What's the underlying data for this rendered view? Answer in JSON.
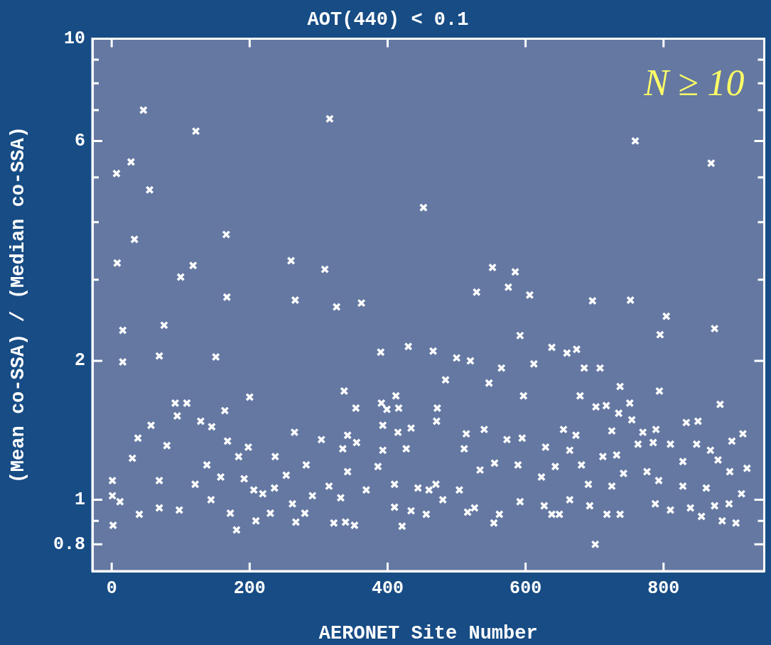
{
  "chart_data": {
    "type": "scatter",
    "title": "AOT(440) < 0.1",
    "xlabel": "AERONET Site Number",
    "ylabel": "(Mean co-SSA) / (Median co-SSA)",
    "annotations": [
      "N ≥ 10"
    ],
    "log": "y",
    "grid": false,
    "legend": false,
    "marker": "cross",
    "xlim": [
      -28,
      946
    ],
    "xticks": [
      0,
      200,
      400,
      600,
      800
    ],
    "ylim": [
      0.7,
      10
    ],
    "yticks": [
      0.8,
      {
        "value": 0.9,
        "label": null
      },
      1,
      2,
      {
        "value": 3,
        "label": null
      },
      {
        "value": 4,
        "label": null
      },
      {
        "value": 5,
        "label": null
      },
      6,
      {
        "value": 7,
        "label": null
      },
      {
        "value": 8,
        "label": null
      },
      {
        "value": 9,
        "label": null
      },
      10
    ],
    "series": [
      {
        "color": "#ffffff",
        "x": [
          46,
          122,
          316,
          28,
          7,
          55,
          452,
          166,
          33,
          8,
          118,
          100,
          260,
          309,
          167,
          266,
          326,
          362,
          16,
          76,
          16,
          69,
          151,
          390,
          430,
          759,
          869,
          552,
          585,
          575,
          529,
          606,
          697,
          752,
          804,
          795,
          874,
          592,
          466,
          500,
          520,
          638,
          660,
          674,
          565,
          612,
          685,
          708,
          484,
          547,
          337,
          200,
          92,
          109,
          95,
          164,
          412,
          391,
          354,
          416,
          399,
          57,
          129,
          265,
          393,
          415,
          434,
          304,
          38,
          145,
          168,
          198,
          237,
          184,
          282,
          80,
          30,
          342,
          335,
          355,
          393,
          427,
          1,
          1,
          12,
          2,
          40,
          69,
          98,
          172,
          181,
          209,
          230,
          262,
          267,
          280,
          322,
          339,
          352,
          421,
          410,
          434,
          69,
          121,
          138,
          144,
          158,
          192,
          206,
          219,
          236,
          253,
          291,
          315,
          332,
          342,
          369,
          386,
          410,
          444,
          472,
          471,
          597,
          679,
          702,
          717,
          735,
          737,
          751,
          754,
          794,
          882,
          833,
          850,
          915,
          899,
          540,
          514,
          511,
          573,
          595,
          655,
          673,
          629,
          725,
          770,
          789,
          785,
          810,
          848,
          868,
          664,
          732,
          712,
          921,
          879,
          828,
          763,
          460,
          470,
          504,
          534,
          555,
          589,
          623,
          643,
          681,
          691,
          725,
          742,
          776,
          793,
          828,
          862,
          896,
          913,
          480,
          516,
          526,
          554,
          562,
          592,
          627,
          638,
          649,
          664,
          693,
          701,
          718,
          737,
          788,
          810,
          839,
          855,
          874,
          885,
          905,
          895,
          456
        ],
        "values": [
          7.0,
          6.3,
          6.7,
          5.4,
          5.1,
          4.7,
          4.3,
          3.76,
          3.67,
          3.26,
          3.22,
          3.04,
          3.3,
          3.16,
          2.75,
          2.71,
          2.62,
          2.67,
          2.33,
          2.39,
          1.99,
          2.05,
          2.04,
          2.09,
          2.15,
          6.0,
          5.37,
          3.19,
          3.12,
          2.89,
          2.82,
          2.78,
          2.7,
          2.71,
          2.5,
          2.28,
          2.35,
          2.27,
          2.1,
          2.03,
          2.0,
          2.14,
          2.08,
          2.12,
          1.93,
          1.97,
          1.93,
          1.93,
          1.82,
          1.79,
          1.72,
          1.67,
          1.62,
          1.62,
          1.52,
          1.56,
          1.68,
          1.62,
          1.58,
          1.58,
          1.57,
          1.45,
          1.48,
          1.4,
          1.45,
          1.4,
          1.43,
          1.35,
          1.36,
          1.44,
          1.34,
          1.3,
          1.24,
          1.24,
          1.19,
          1.31,
          1.23,
          1.38,
          1.29,
          1.33,
          1.28,
          1.29,
          1.1,
          1.02,
          0.99,
          0.88,
          0.93,
          0.96,
          0.95,
          0.935,
          0.86,
          0.9,
          0.935,
          0.98,
          0.894,
          0.935,
          0.89,
          0.894,
          0.88,
          0.876,
          0.963,
          0.946,
          1.1,
          1.08,
          1.19,
          1.0,
          1.12,
          1.11,
          1.05,
          1.03,
          1.06,
          1.13,
          1.02,
          1.07,
          1.01,
          1.15,
          1.05,
          1.18,
          1.08,
          1.06,
          1.58,
          1.48,
          1.68,
          1.68,
          1.59,
          1.6,
          1.54,
          1.76,
          1.62,
          1.49,
          1.72,
          1.61,
          1.47,
          1.48,
          1.39,
          1.34,
          1.42,
          1.39,
          1.29,
          1.35,
          1.36,
          1.42,
          1.38,
          1.3,
          1.41,
          1.4,
          1.42,
          1.33,
          1.32,
          1.32,
          1.28,
          1.28,
          1.25,
          1.24,
          1.17,
          1.22,
          1.21,
          1.32,
          1.05,
          1.08,
          1.05,
          1.16,
          1.2,
          1.19,
          1.12,
          1.18,
          1.19,
          1.08,
          1.07,
          1.14,
          1.15,
          1.1,
          1.07,
          1.06,
          1.15,
          1.03,
          1.0,
          0.94,
          0.96,
          0.89,
          0.93,
          0.99,
          0.97,
          0.93,
          0.93,
          1.0,
          0.97,
          0.8,
          0.93,
          0.93,
          0.98,
          0.95,
          0.96,
          0.92,
          0.97,
          0.9,
          0.89,
          0.98,
          0.93
        ]
      }
    ]
  }
}
